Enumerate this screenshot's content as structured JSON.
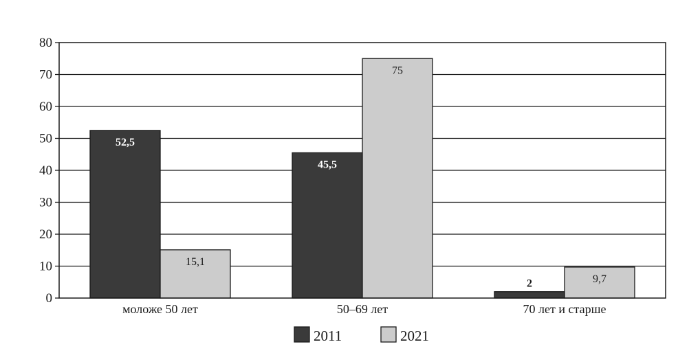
{
  "chart_data": {
    "type": "bar",
    "title": "",
    "xlabel": "",
    "ylabel": "",
    "categories": [
      "моложе 50 лет",
      "50–69 лет",
      "70 лет и старше"
    ],
    "series": [
      {
        "name": "2011",
        "values": [
          52.5,
          45.5,
          2
        ],
        "labels": [
          "52,5",
          "45,5",
          "2"
        ],
        "color": "#3a3a3a",
        "label_color": "#ffffff",
        "label_color_outside": "#1a1a1a",
        "label_bold": true
      },
      {
        "name": "2021",
        "values": [
          15.1,
          75,
          9.7
        ],
        "labels": [
          "15,1",
          "75",
          "9,7"
        ],
        "color": "#cccccc",
        "label_color": "#1a1a1a",
        "label_color_outside": "#1a1a1a",
        "label_bold": false
      }
    ],
    "ylim": [
      0,
      80
    ],
    "yticks": [
      0,
      10,
      20,
      30,
      40,
      50,
      60,
      70,
      80
    ],
    "grid": true,
    "legend_position": "bottom-center"
  }
}
